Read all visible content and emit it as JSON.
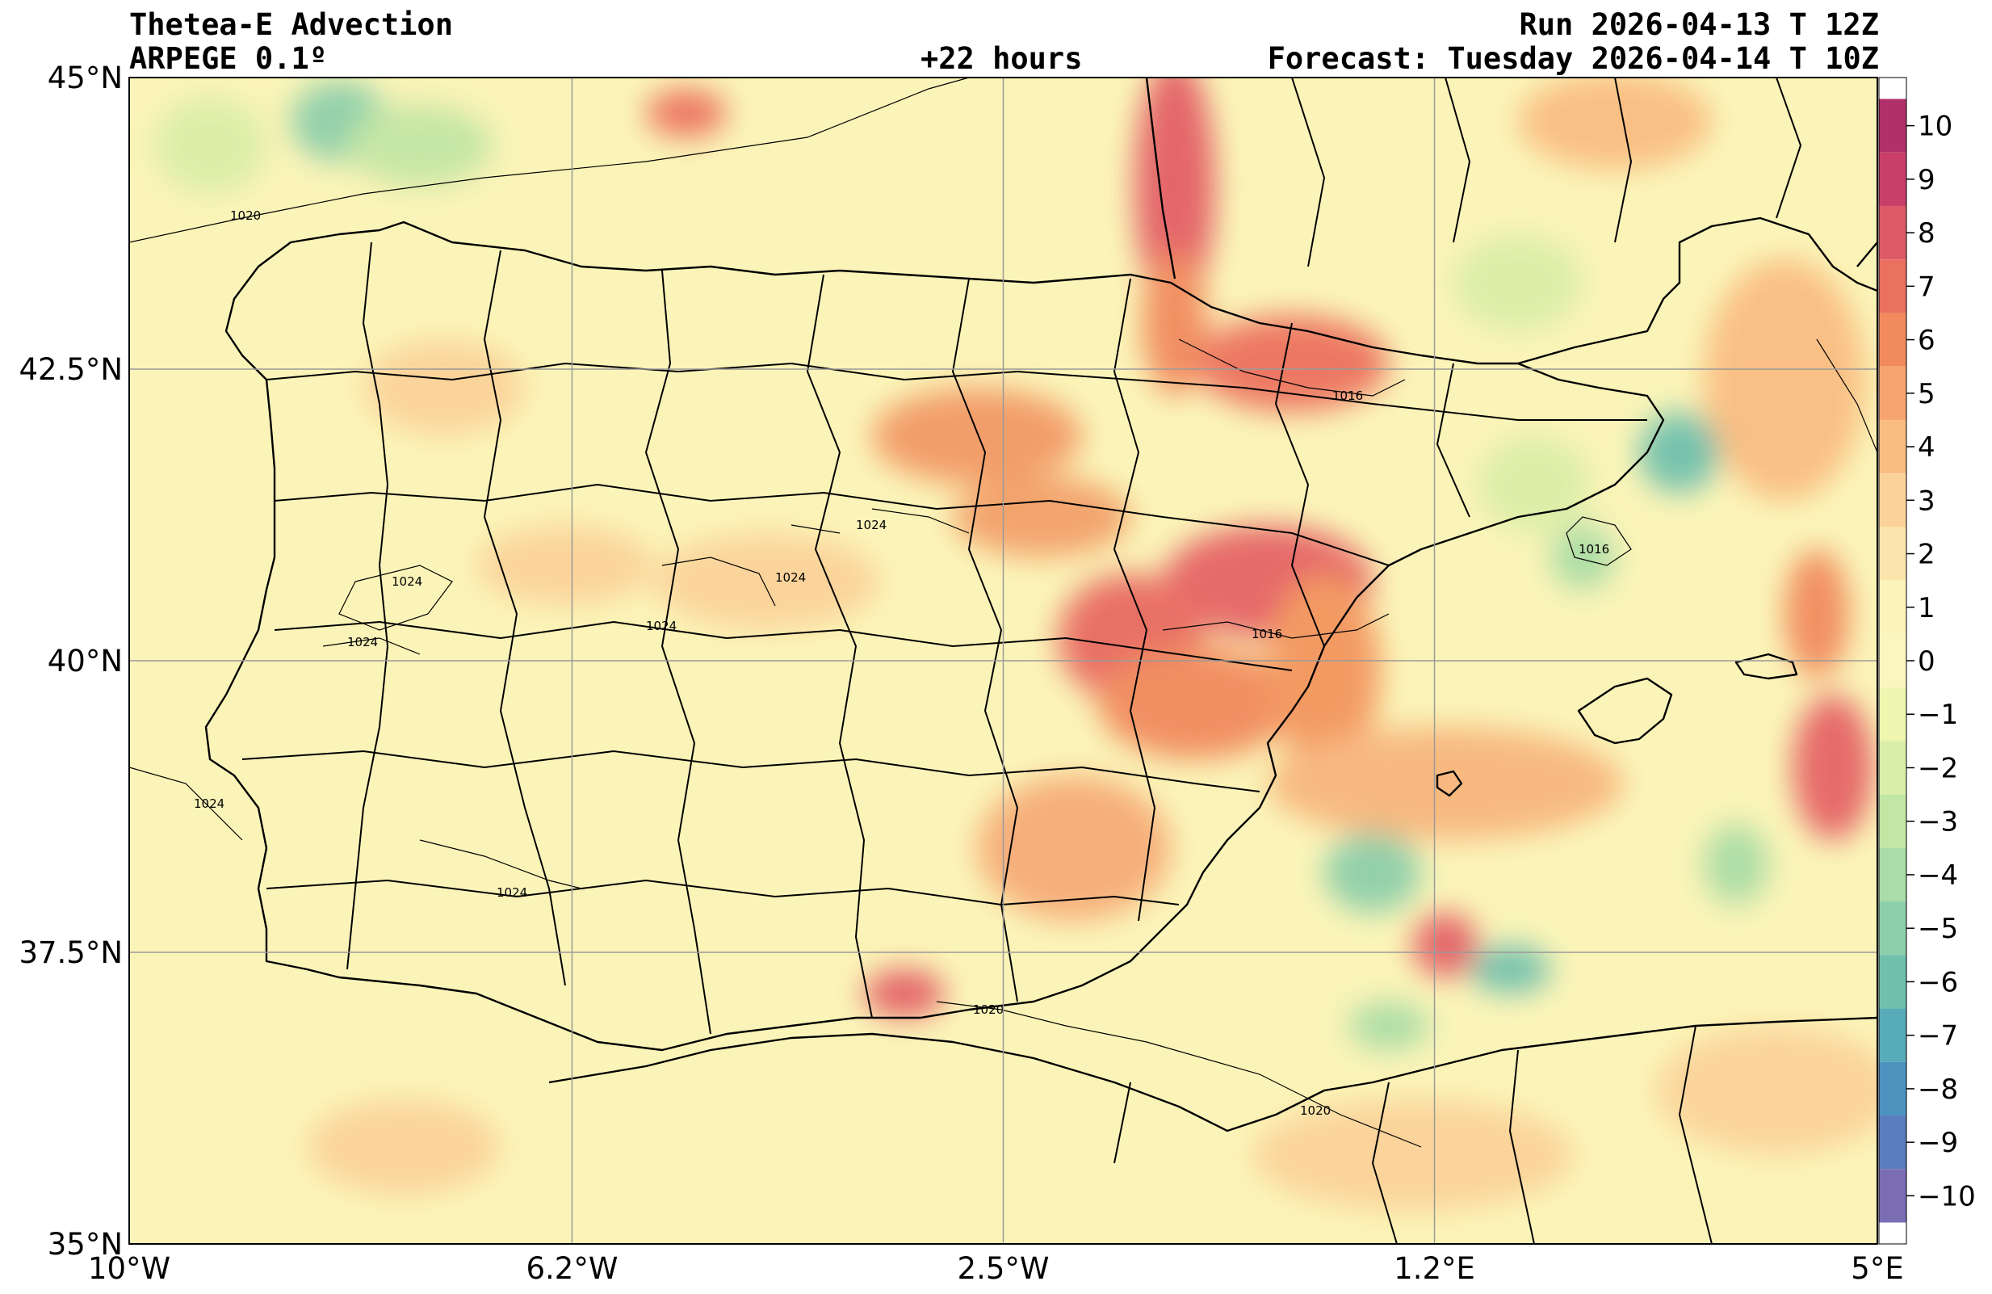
{
  "header": {
    "title_left_1": "Thetea-E Advection",
    "title_left_2": "ARPEGE 0.1º",
    "title_center": "+22 hours",
    "title_right_1": "Run 2026-04-13 T 12Z",
    "title_right_2": "Forecast: Tuesday 2026-04-14 T 10Z"
  },
  "axes": {
    "lat_ticks": [
      {
        "value": 45,
        "label": "45°N"
      },
      {
        "value": 42.5,
        "label": "42.5°N"
      },
      {
        "value": 40,
        "label": "40°N"
      },
      {
        "value": 37.5,
        "label": "37.5°N"
      },
      {
        "value": 35,
        "label": "35°N"
      }
    ],
    "lon_ticks": [
      {
        "value": -10,
        "label": "10°W"
      },
      {
        "value": -6.2,
        "label": "6.2°W"
      },
      {
        "value": -2.5,
        "label": "2.5°W"
      },
      {
        "value": 1.2,
        "label": "1.2°E"
      },
      {
        "value": 5,
        "label": "5°E"
      }
    ],
    "lon_range": [
      -10,
      5
    ],
    "lat_range": [
      35,
      45
    ]
  },
  "colorbar": {
    "levels": [
      10,
      9,
      8,
      7,
      6,
      5,
      4,
      3,
      2,
      1,
      0,
      -1,
      -2,
      -3,
      -4,
      -5,
      -6,
      -7,
      -8,
      -9,
      -10
    ],
    "labels": [
      "10",
      "9",
      "8",
      "7",
      "6",
      "5",
      "4",
      "3",
      "2",
      "1",
      "0",
      "−1",
      "−2",
      "−3",
      "−4",
      "−5",
      "−6",
      "−7",
      "−8",
      "−9",
      "−10"
    ],
    "colors": [
      "#b0306a",
      "#c83f6a",
      "#dd5a68",
      "#ea7060",
      "#f18a5d",
      "#f6a470",
      "#f9bd82",
      "#fbd39a",
      "#fbe5ac",
      "#fcf3bb",
      "#fbf6bf",
      "#eef6b0",
      "#d9eea6",
      "#c2e6a4",
      "#a9dca6",
      "#8dcfaa",
      "#70c0ad",
      "#58abb8",
      "#4d93c0",
      "#5b7cbd",
      "#7a6db4"
    ]
  },
  "isobar_labels": [
    "1020",
    "1016",
    "1016",
    "1016",
    "1024",
    "1024",
    "1024",
    "1024",
    "1024",
    "1024",
    "1024",
    "1020",
    "1020"
  ],
  "map": {
    "land_color": "#fcf3bb",
    "sea_color": "#f7efb0"
  }
}
